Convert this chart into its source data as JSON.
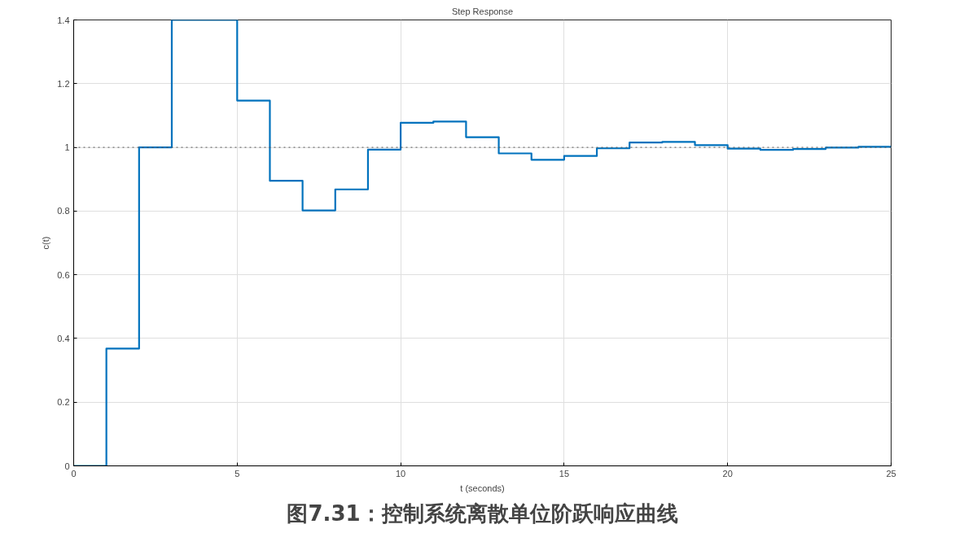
{
  "chart_data": {
    "type": "step",
    "title": "Step Response",
    "xlabel": "t (seconds)",
    "ylabel": "c(t)",
    "x": [
      0,
      1,
      2,
      3,
      4,
      5,
      6,
      7,
      8,
      9,
      10,
      11,
      12,
      13,
      14,
      15,
      16,
      17,
      18,
      19,
      20,
      21,
      22,
      23,
      24,
      25
    ],
    "series": [
      {
        "color": "#0072bd",
        "values": [
          0,
          0.368,
          1.0,
          1.4,
          1.4,
          1.147,
          0.895,
          0.802,
          0.868,
          0.993,
          1.077,
          1.081,
          1.032,
          0.981,
          0.961,
          0.973,
          0.997,
          1.015,
          1.017,
          1.007,
          0.996,
          0.992,
          0.995,
          0.999,
          1.002,
          1.002
        ]
      }
    ],
    "xlim": [
      0,
      25
    ],
    "ylim": [
      0,
      1.4
    ],
    "xticks": [
      0,
      5,
      10,
      15,
      20,
      25
    ],
    "yticks": [
      0,
      {
        "value": 0.2,
        "label": "0.2"
      },
      {
        "value": 0.4,
        "label": "0.4"
      },
      {
        "value": 0.6,
        "label": "0.6"
      },
      {
        "value": 0.8,
        "label": "0.8"
      },
      1,
      {
        "value": 1.2,
        "label": "1.2"
      },
      {
        "value": 1.4,
        "label": "1.4"
      }
    ],
    "ref_lines": [
      {
        "axis": "y",
        "value": 1,
        "color": "#555555",
        "line_style": "dotted"
      }
    ],
    "grid": true,
    "line_style": "solid",
    "annotations": [
      "图7.31：控制系统离散单位阶跃响应曲线"
    ]
  }
}
